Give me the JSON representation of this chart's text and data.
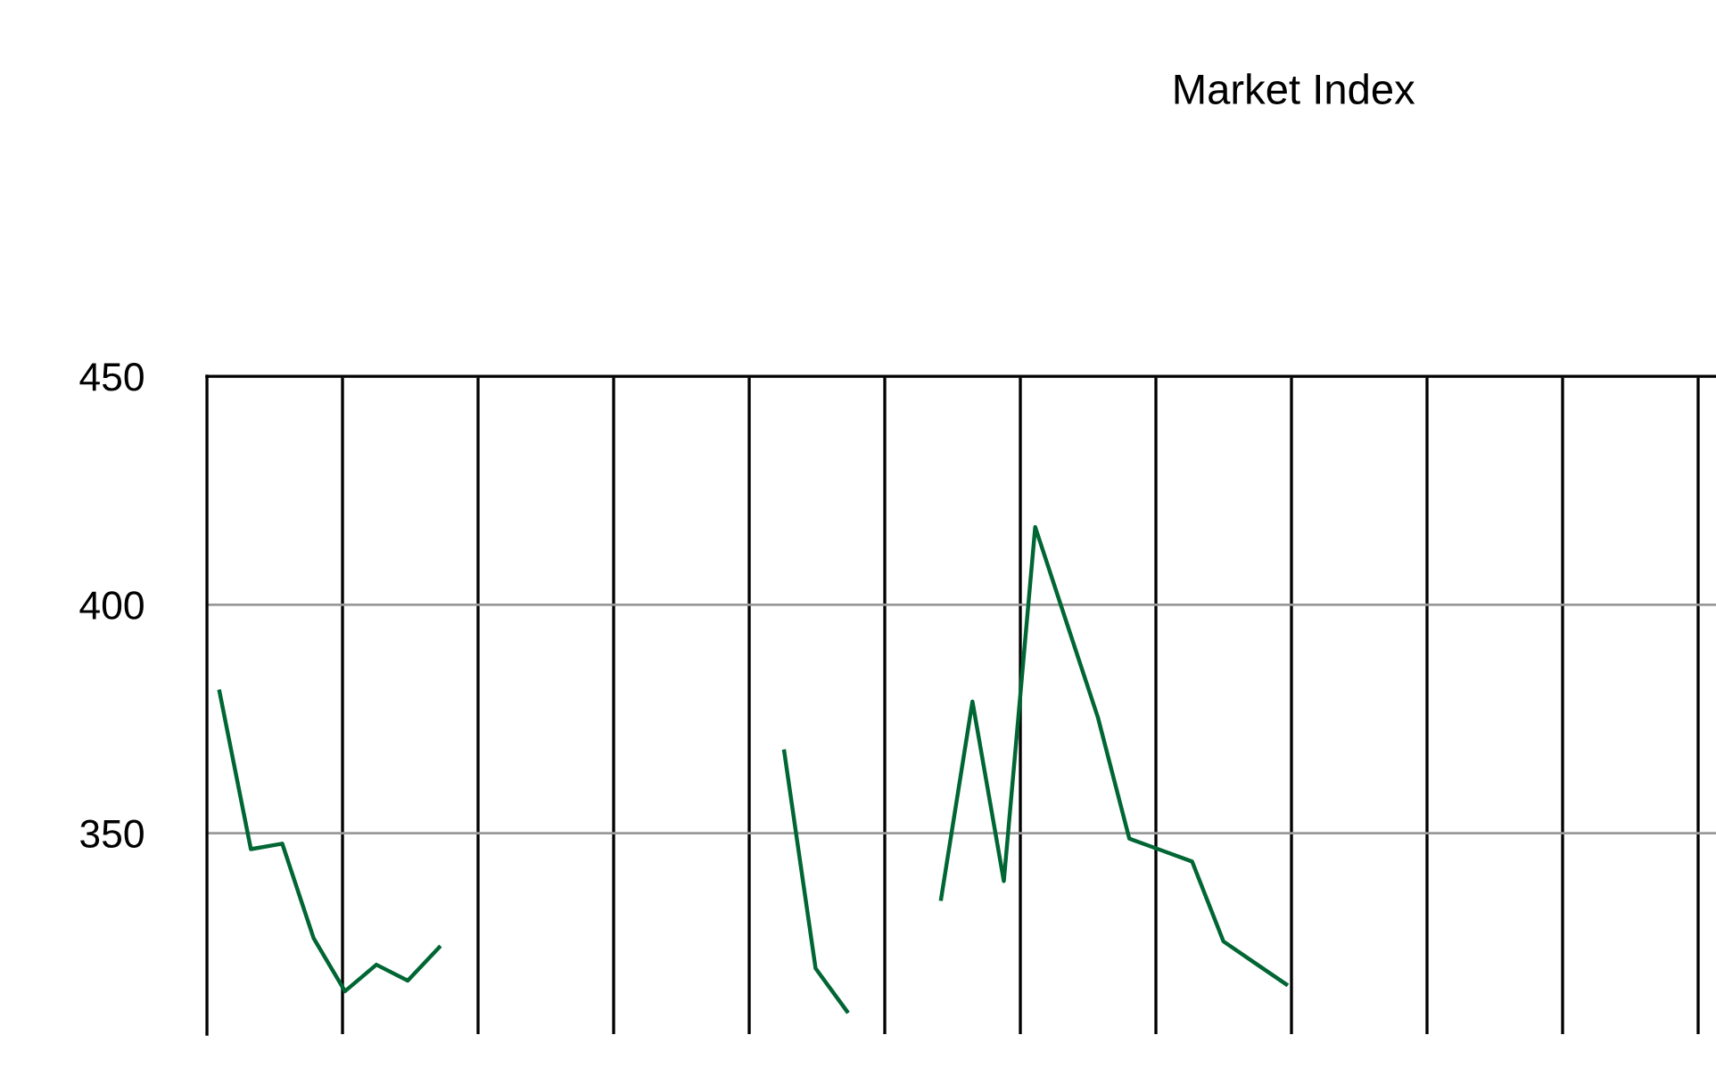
{
  "chart_data": {
    "type": "line",
    "title": "Market Index",
    "categories": [
      null,
      null,
      null,
      null,
      null,
      null,
      null,
      null,
      null,
      null,
      null,
      null,
      null,
      null,
      null,
      null,
      null,
      null,
      null,
      null,
      null,
      null,
      null,
      null,
      null,
      null,
      null,
      null,
      null,
      null,
      null,
      null,
      null,
      null,
      null,
      null,
      null,
      null,
      null,
      null,
      null,
      null,
      null,
      null,
      null,
      null,
      null,
      null
    ],
    "series": [
      {
        "color": "#006633",
        "values": [
          381,
          346.5,
          347.7,
          327,
          315.4,
          321.2,
          317.7,
          325,
          null,
          null,
          null,
          null,
          null,
          null,
          null,
          null,
          null,
          null,
          367.9,
          320.4,
          311,
          null,
          null,
          335.6,
          378.8,
          339.5,
          417,
          396.1,
          375.3,
          348.8,
          346.3,
          343.8,
          326.3,
          321.6,
          316.9,
          null,
          null,
          null,
          null,
          null,
          null,
          null,
          null,
          null,
          null,
          null,
          null,
          null
        ]
      }
    ],
    "ylim": [
      306,
      450
    ],
    "yticks": [
      350,
      400,
      450
    ],
    "grid": true,
    "marker": "none",
    "line_style": "solid"
  }
}
